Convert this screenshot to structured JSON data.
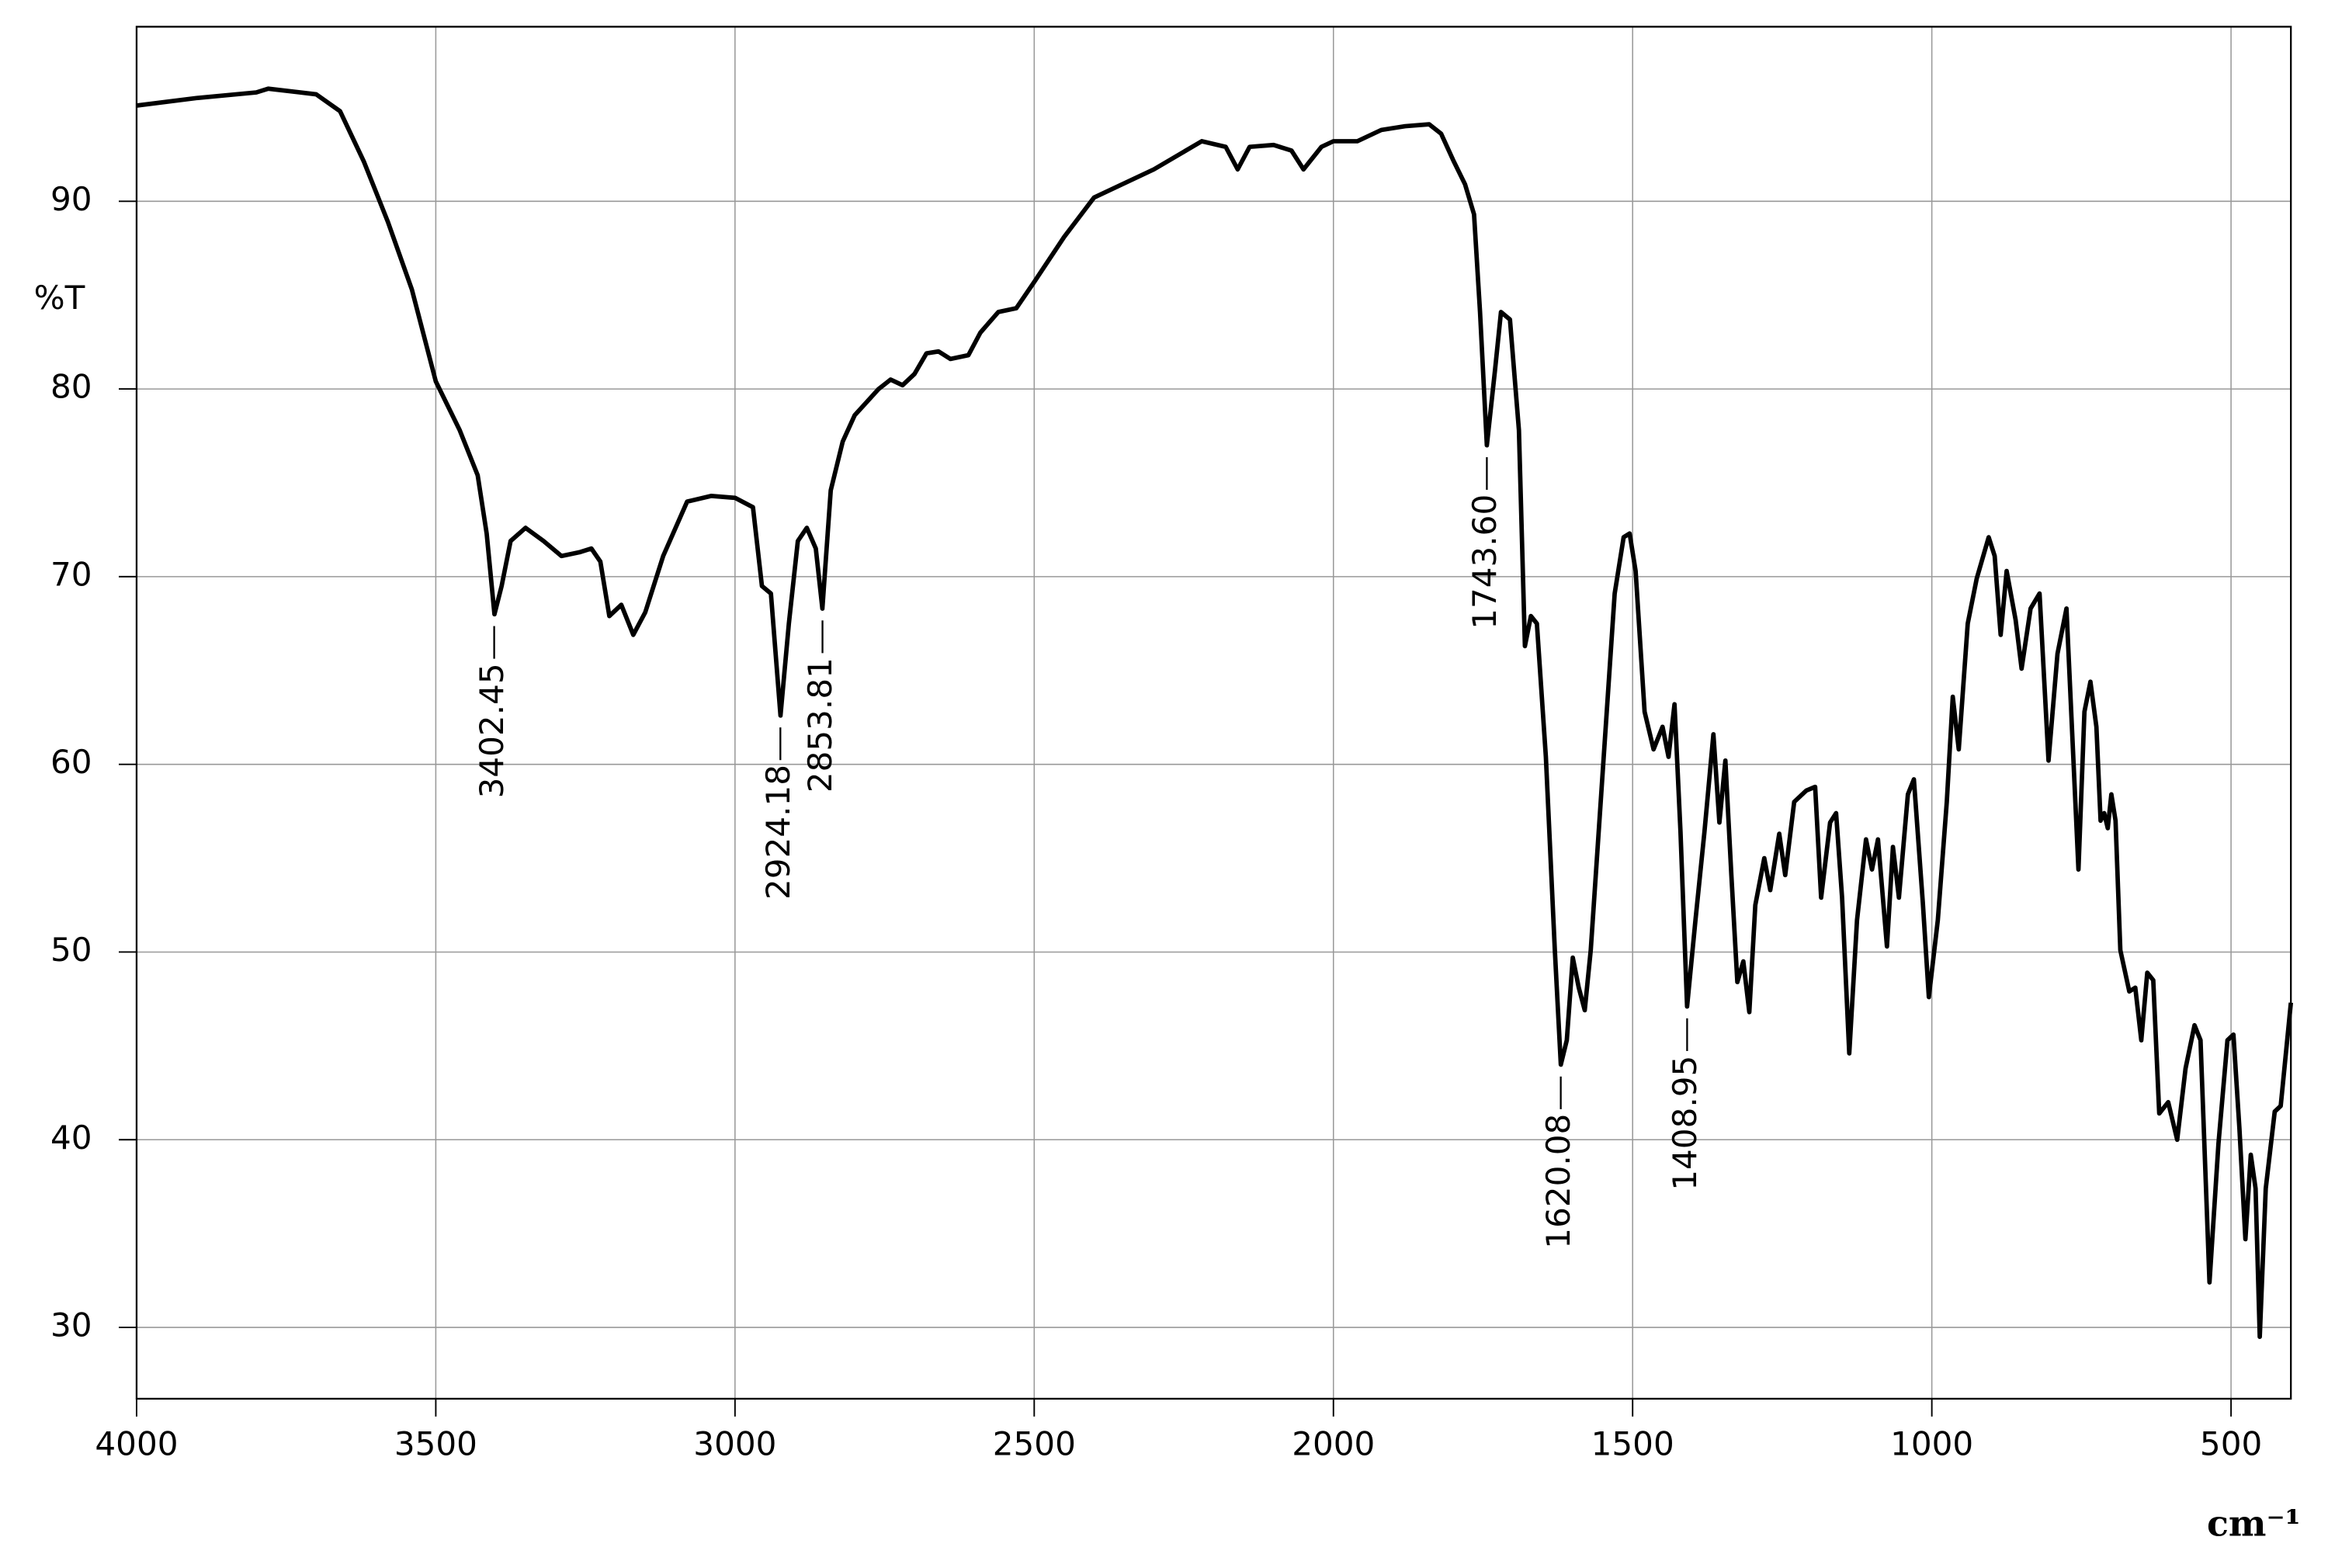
{
  "chart_data": {
    "type": "line",
    "y_label": "%T",
    "x_label": "cm⁻¹",
    "xlim": [
      4000,
      400
    ],
    "ylim": [
      26.2,
      99.3
    ],
    "xticks": [
      4000,
      3500,
      3000,
      2500,
      2000,
      1500,
      1000,
      500
    ],
    "yticks": [
      30,
      40,
      50,
      60,
      70,
      80,
      90
    ],
    "grid": true,
    "series": [
      {
        "color": "#000000",
        "x": [
          4000,
          3900,
          3800,
          3780,
          3700,
          3660,
          3620,
          3580,
          3540,
          3500,
          3460,
          3430,
          3415,
          3402,
          3390,
          3375,
          3350,
          3320,
          3290,
          3260,
          3240,
          3225,
          3210,
          3190,
          3170,
          3150,
          3120,
          3080,
          3040,
          3000,
          2970,
          2955,
          2940,
          2924,
          2910,
          2895,
          2880,
          2865,
          2854,
          2840,
          2820,
          2800,
          2760,
          2740,
          2720,
          2700,
          2680,
          2660,
          2640,
          2610,
          2590,
          2560,
          2530,
          2500,
          2450,
          2400,
          2300,
          2220,
          2180,
          2160,
          2140,
          2100,
          2070,
          2050,
          2020,
          2000,
          1960,
          1920,
          1880,
          1840,
          1820,
          1800,
          1780,
          1765,
          1755,
          1743.6,
          1730,
          1720,
          1705,
          1690,
          1680,
          1670,
          1660,
          1645,
          1630,
          1620,
          1610,
          1600,
          1590,
          1580,
          1570,
          1550,
          1530,
          1515,
          1505,
          1495,
          1480,
          1465,
          1450,
          1440,
          1430,
          1420,
          1409,
          1395,
          1380,
          1365,
          1355,
          1345,
          1335,
          1325,
          1315,
          1305,
          1295,
          1280,
          1270,
          1255,
          1245,
          1230,
          1210,
          1195,
          1185,
          1170,
          1160,
          1150,
          1138,
          1125,
          1110,
          1100,
          1090,
          1075,
          1065,
          1055,
          1040,
          1030,
          1015,
          1005,
          990,
          975,
          965,
          955,
          940,
          925,
          905,
          895,
          885,
          875,
          860,
          850,
          835,
          820,
          805,
          790,
          775,
          755,
          745,
          735,
          725,
          718,
          712,
          706,
          700,
          693,
          685,
          670,
          660,
          650,
          640,
          630,
          620,
          605,
          590,
          576,
          561,
          551,
          536,
          521,
          506,
          496,
          486,
          476,
          467,
          459,
          452,
          442,
          427,
          417,
          400
        ],
        "values": [
          95.1,
          95.5,
          95.8,
          96.0,
          95.7,
          94.8,
          92.1,
          88.9,
          85.3,
          80.4,
          77.8,
          75.4,
          72.3,
          68.0,
          69.5,
          71.9,
          72.6,
          71.9,
          71.1,
          71.3,
          71.5,
          70.8,
          67.9,
          68.5,
          66.9,
          68.1,
          71.1,
          74.0,
          74.3,
          74.2,
          73.7,
          69.5,
          69.1,
          62.6,
          67.5,
          71.9,
          72.6,
          71.5,
          68.3,
          74.6,
          77.2,
          78.6,
          80.0,
          80.5,
          80.2,
          80.8,
          81.9,
          82.0,
          81.6,
          81.8,
          83.0,
          84.1,
          84.3,
          85.7,
          88.1,
          90.2,
          91.7,
          93.2,
          92.9,
          91.7,
          92.9,
          93.0,
          92.7,
          91.7,
          92.9,
          93.2,
          93.2,
          93.8,
          94.0,
          94.1,
          93.6,
          92.2,
          90.9,
          89.3,
          84.1,
          77.0,
          81.0,
          84.1,
          83.7,
          77.8,
          66.3,
          67.9,
          67.5,
          60.4,
          50.1,
          44.0,
          45.3,
          49.7,
          48.1,
          46.9,
          50.1,
          59.6,
          69.1,
          72.1,
          72.3,
          70.3,
          62.8,
          60.8,
          62.0,
          60.4,
          63.2,
          56.4,
          47.1,
          51.7,
          56.4,
          61.6,
          56.9,
          60.2,
          54.1,
          48.4,
          49.5,
          46.8,
          52.5,
          55.0,
          53.3,
          56.3,
          54.1,
          58.0,
          58.6,
          58.8,
          52.9,
          56.9,
          57.4,
          52.9,
          44.6,
          51.7,
          56.0,
          54.4,
          56.0,
          50.3,
          55.6,
          52.9,
          58.4,
          59.2,
          52.6,
          47.6,
          51.7,
          58.0,
          63.6,
          60.8,
          67.5,
          69.9,
          72.1,
          71.1,
          66.9,
          70.3,
          67.7,
          65.1,
          68.3,
          69.1,
          60.2,
          65.9,
          68.3,
          54.4,
          62.8,
          64.4,
          62.0,
          57.0,
          57.4,
          56.6,
          58.4,
          57.0,
          50.1,
          47.9,
          48.1,
          45.3,
          48.9,
          48.5,
          41.4,
          42.0,
          40.0,
          43.8,
          46.1,
          45.3,
          32.4,
          39.8,
          45.3,
          45.6,
          40.6,
          34.7,
          39.2,
          37.4,
          29.5,
          37.4,
          41.5,
          41.8,
          47.3
        ]
      }
    ],
    "annotations": [
      {
        "text": "3402.45",
        "x": 3402.45,
        "y": 68.0
      },
      {
        "text": "2924.18",
        "x": 2924.18,
        "y": 62.6
      },
      {
        "text": "2853.81",
        "x": 2853.81,
        "y": 68.3
      },
      {
        "text": "1743.60",
        "x": 1743.6,
        "y": 77.0
      },
      {
        "text": "1620.08",
        "x": 1620.08,
        "y": 44.0
      },
      {
        "text": "1408.95",
        "x": 1408.95,
        "y": 47.1
      }
    ]
  }
}
